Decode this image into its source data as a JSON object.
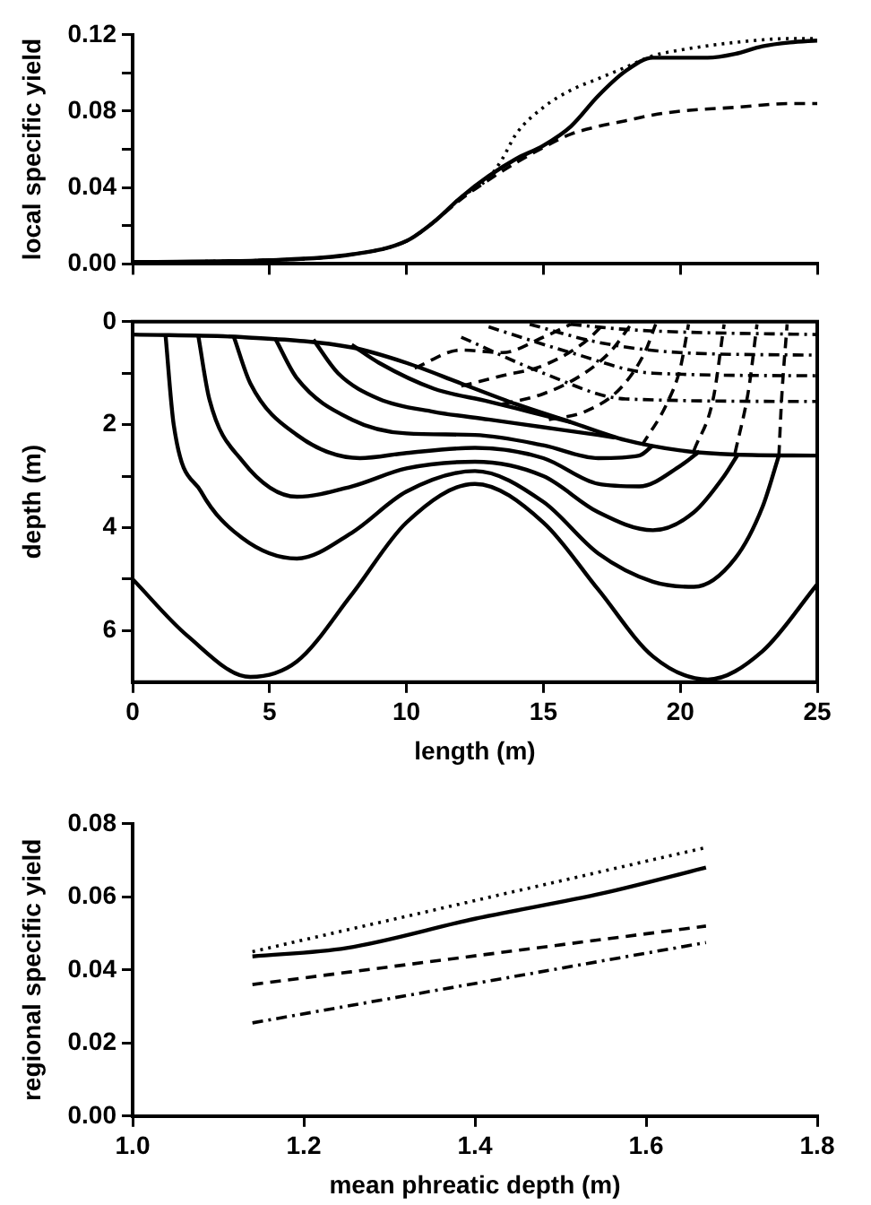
{
  "chart_data": [
    {
      "type": "line",
      "ylabel": "local specific yield",
      "xlim": [
        0,
        25
      ],
      "ylim": [
        0,
        0.12
      ],
      "xticks": [
        0,
        5,
        10,
        15,
        20,
        25
      ],
      "yticks": [
        {
          "value": 0,
          "label": "0.00"
        },
        {
          "value": 0.02,
          "label": null
        },
        {
          "value": 0.04,
          "label": "0.04"
        },
        {
          "value": 0.06,
          "label": null
        },
        {
          "value": 0.08,
          "label": "0.08"
        },
        {
          "value": 0.1,
          "label": null
        },
        {
          "value": 0.12,
          "label": "0.12"
        }
      ],
      "tick_labels": "y",
      "grid": false,
      "legend": false,
      "series": [
        {
          "color": "#000000",
          "line_style": "solid",
          "x": [
            0,
            5,
            8,
            10,
            11,
            12,
            13,
            14,
            15,
            16,
            17,
            18,
            19,
            20,
            21,
            22,
            23,
            24,
            25
          ],
          "values": [
            0.001,
            0.002,
            0.005,
            0.012,
            0.022,
            0.035,
            0.046,
            0.055,
            0.062,
            0.072,
            0.088,
            0.101,
            0.108,
            0.108,
            0.108,
            0.11,
            0.114,
            0.116,
            0.117
          ]
        },
        {
          "color": "#000000",
          "line_style": "dotted",
          "x": [
            0,
            5,
            8,
            10,
            11,
            12,
            13,
            13.5,
            14,
            15,
            16,
            17,
            18,
            19,
            20,
            22,
            24,
            25
          ],
          "values": [
            0.001,
            0.002,
            0.005,
            0.012,
            0.022,
            0.035,
            0.045,
            0.055,
            0.068,
            0.082,
            0.091,
            0.097,
            0.103,
            0.109,
            0.112,
            0.116,
            0.118,
            0.118
          ]
        },
        {
          "color": "#000000",
          "line_style": "dashed",
          "x": [
            0,
            5,
            8,
            10,
            11,
            12,
            13,
            14,
            15,
            16,
            17,
            18,
            19,
            20,
            22,
            24,
            25
          ],
          "values": [
            0.001,
            0.002,
            0.005,
            0.012,
            0.022,
            0.034,
            0.044,
            0.053,
            0.061,
            0.068,
            0.072,
            0.075,
            0.078,
            0.08,
            0.082,
            0.084,
            0.084
          ]
        }
      ]
    },
    {
      "type": "line",
      "xlabel": "length (m)",
      "ylabel": "depth (m)",
      "xlim": [
        0,
        25
      ],
      "ylim": [
        7,
        0
      ],
      "xticks": [
        0,
        5,
        10,
        15,
        20,
        25
      ],
      "yticks": [
        0,
        {
          "value": 1,
          "label": null
        },
        2,
        {
          "value": 3,
          "label": null
        },
        4,
        {
          "value": 5,
          "label": null
        },
        6
      ],
      "grid": false,
      "legend": false,
      "series": [
        {
          "color": "#000000",
          "line_style": "solid",
          "x": [
            0,
            4,
            8,
            10,
            12,
            14,
            16,
            18,
            20,
            22,
            25
          ],
          "values": [
            0.25,
            0.3,
            0.5,
            0.8,
            1.2,
            1.6,
            1.95,
            2.3,
            2.5,
            2.58,
            2.6
          ]
        },
        {
          "color": "#000000",
          "line_style": "solid",
          "x": [
            0,
            2,
            4.3,
            6,
            8,
            10,
            12.5,
            15,
            17,
            19,
            21,
            23,
            25
          ],
          "values": [
            5,
            6.1,
            6.9,
            6.6,
            5.3,
            3.9,
            3.15,
            3.9,
            5.2,
            6.5,
            6.95,
            6.4,
            5.1
          ]
        },
        {
          "color": "#000000",
          "line_style": "solid",
          "x": [
            1.2,
            1.5,
            2.5,
            4,
            6,
            8,
            10,
            12.5,
            15,
            17,
            19,
            20.5,
            22,
            23,
            23.6
          ],
          "values": [
            0.25,
            2,
            3.3,
            4.2,
            4.6,
            4.1,
            3.3,
            2.9,
            3.5,
            4.5,
            5.05,
            5.15,
            4.6,
            3.6,
            2.6
          ]
        },
        {
          "color": "#000000",
          "line_style": "solid",
          "x": [
            2.4,
            2.8,
            4,
            6,
            8,
            10,
            12.5,
            15,
            17,
            19,
            20.5,
            21.6,
            22.1
          ],
          "values": [
            0.28,
            1.5,
            2.7,
            3.4,
            3.2,
            2.85,
            2.72,
            3,
            3.7,
            4.05,
            3.7,
            3,
            2.58
          ]
        },
        {
          "color": "#000000",
          "line_style": "solid",
          "x": [
            3.7,
            4.3,
            6,
            8.3,
            10,
            12.5,
            15,
            17,
            18.5,
            20,
            20.7
          ],
          "values": [
            0.3,
            1.2,
            2.2,
            2.65,
            2.55,
            2.45,
            2.65,
            3.15,
            3.2,
            2.8,
            2.52
          ]
        },
        {
          "color": "#000000",
          "line_style": "solid",
          "x": [
            5.2,
            6,
            8,
            10,
            12.5,
            15,
            17,
            18.5,
            19
          ],
          "values": [
            0.32,
            1.1,
            1.9,
            2.17,
            2.2,
            2.4,
            2.65,
            2.6,
            2.4
          ]
        },
        {
          "color": "#000000",
          "line_style": "solid",
          "x": [
            6.6,
            7.5,
            9,
            11,
            13,
            15,
            17,
            17.6
          ],
          "values": [
            0.35,
            1,
            1.5,
            1.75,
            1.9,
            2.05,
            2.2,
            2.25
          ]
        },
        {
          "color": "#000000",
          "line_style": "solid",
          "x": [
            8,
            9,
            11,
            13,
            14.5,
            16
          ],
          "values": [
            0.45,
            0.8,
            1.3,
            1.55,
            1.75,
            1.95
          ]
        },
        {
          "color": "#000000",
          "line_style": "dashed",
          "x": [
            10.3,
            12,
            13.5,
            15,
            16
          ],
          "values": [
            0.9,
            0.55,
            0.6,
            0.3,
            0.05
          ]
        },
        {
          "color": "#000000",
          "line_style": "dashed",
          "x": [
            12,
            13.5,
            15,
            16.5,
            17.2
          ],
          "values": [
            1.25,
            1.05,
            0.85,
            0.4,
            0.05
          ]
        },
        {
          "color": "#000000",
          "line_style": "dashed",
          "x": [
            13.5,
            15,
            16.5,
            17.5,
            18.2
          ],
          "values": [
            1.6,
            1.4,
            1,
            0.55,
            0.05
          ]
        },
        {
          "color": "#000000",
          "line_style": "dashed",
          "x": [
            15.2,
            16.5,
            17.8,
            18.7,
            19.1
          ],
          "values": [
            1.9,
            1.75,
            1.3,
            0.6,
            0.05
          ]
        },
        {
          "color": "#000000",
          "line_style": "dashed",
          "x": [
            18.6,
            19.5,
            20,
            20.3
          ],
          "values": [
            2.4,
            1.6,
            0.9,
            0.05
          ]
        },
        {
          "color": "#000000",
          "line_style": "dashed",
          "x": [
            20.5,
            21.2,
            21.6
          ],
          "values": [
            2.5,
            1.5,
            0.05
          ]
        },
        {
          "color": "#000000",
          "line_style": "dashed",
          "x": [
            22,
            22.5,
            22.8
          ],
          "values": [
            2.55,
            1.3,
            0.05
          ]
        },
        {
          "color": "#000000",
          "line_style": "dashed",
          "x": [
            23.6,
            23.7,
            23.9
          ],
          "values": [
            2.6,
            1.5,
            0.05
          ]
        },
        {
          "color": "#000000",
          "line_style": "dashdot",
          "x": [
            16,
            18,
            20,
            25
          ],
          "values": [
            0.05,
            0.15,
            0.2,
            0.25
          ]
        },
        {
          "color": "#000000",
          "line_style": "dashdot",
          "x": [
            14.5,
            17,
            20,
            25
          ],
          "values": [
            0.05,
            0.4,
            0.6,
            0.65
          ]
        },
        {
          "color": "#000000",
          "line_style": "dashdot",
          "x": [
            13,
            16,
            19,
            25
          ],
          "values": [
            0.1,
            0.6,
            1,
            1.05
          ]
        },
        {
          "color": "#000000",
          "line_style": "dashdot",
          "x": [
            12,
            15,
            18,
            25
          ],
          "values": [
            0.3,
            1,
            1.5,
            1.55
          ]
        }
      ]
    },
    {
      "type": "line",
      "xlabel": "mean phreatic depth (m)",
      "ylabel": "regional specific yield",
      "xlim": [
        1,
        1.8
      ],
      "ylim": [
        0,
        0.08
      ],
      "xticks": [
        {
          "value": 1,
          "label": "1.0"
        },
        1.2,
        1.4,
        1.6,
        1.8
      ],
      "yticks": [
        {
          "value": 0,
          "label": "0.00"
        },
        {
          "value": 0.02,
          "label": "0.02"
        },
        {
          "value": 0.04,
          "label": "0.04"
        },
        {
          "value": 0.06,
          "label": "0.06"
        },
        {
          "value": 0.08,
          "label": "0.08"
        }
      ],
      "grid": false,
      "legend": false,
      "series": [
        {
          "color": "#000000",
          "line_style": "solid",
          "x": [
            1.14,
            1.25,
            1.4,
            1.55,
            1.67
          ],
          "values": [
            0.0437,
            0.046,
            0.054,
            0.061,
            0.068
          ]
        },
        {
          "color": "#000000",
          "line_style": "dotted",
          "x": [
            1.14,
            1.67
          ],
          "values": [
            0.045,
            0.0735
          ]
        },
        {
          "color": "#000000",
          "line_style": "dashed",
          "x": [
            1.14,
            1.67
          ],
          "values": [
            0.036,
            0.052
          ]
        },
        {
          "color": "#000000",
          "line_style": "dashdot",
          "x": [
            1.14,
            1.67
          ],
          "values": [
            0.0255,
            0.0475
          ]
        }
      ]
    }
  ]
}
